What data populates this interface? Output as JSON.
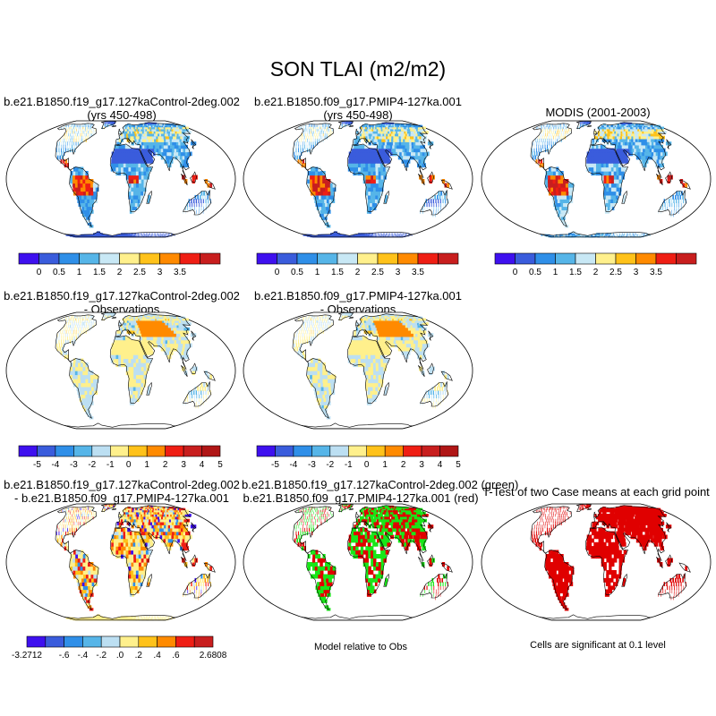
{
  "title": "SON TLAI (m2/m2)",
  "colors": {
    "abs_scale": [
      "#3e10ef",
      "#3a5cdc",
      "#2f8fe8",
      "#56b5e8",
      "#c8e8f5",
      "#fff08c",
      "#ffc21a",
      "#ff8a00",
      "#ef1e14",
      "#c81e1e"
    ],
    "diff_scale": [
      "#3e10ef",
      "#3a5cdc",
      "#2f8fe8",
      "#56b5e8",
      "#bcdff2",
      "#fff08c",
      "#ffc21a",
      "#ff8a00",
      "#ef1e14",
      "#c81e1e"
    ],
    "green": "#19e619",
    "red": "#e00000"
  },
  "panels": [
    {
      "title_line1": "b.e21.B1850.f19_g17.127kaControl-2deg.002",
      "title_line2": "(yrs 450-498)"
    },
    {
      "title_line1": "b.e21.B1850.f09_g17.PMIP4-127ka.001",
      "title_line2": "(yrs 450-498)"
    },
    {
      "title_line1": "MODIS (2001-2003)",
      "title_line2": ""
    },
    {
      "title_line1": "b.e21.B1850.f19_g17.127kaControl-2deg.002",
      "title_line2": "- Observations"
    },
    {
      "title_line1": "b.e21.B1850.f09_g17.PMIP4-127ka.001",
      "title_line2": "- Observations"
    },
    {
      "title_line1": "b.e21.B1850.f19_g17.127kaControl-2deg.002",
      "title_line2": "- b.e21.B1850.f09_g17.PMIP4-127ka.001"
    },
    {
      "title_line1": "b.e21.B1850.f19_g17.127kaControl-2deg.002 (green)",
      "title_line2": "b.e21.B1850.f09_g17.PMIP4-127ka.001 (red)"
    },
    {
      "title_line1": "T-Test of two Case means at each grid point",
      "title_line2": ""
    }
  ],
  "notes": {
    "model_relative": "Model relative to Obs",
    "significance": "Cells are significant at 0.1 level"
  },
  "chart_data": [
    {
      "type": "heatmap",
      "title": "b.e21.B1850.f19_g17.127kaControl-2deg.002 (yrs 450-498)",
      "colorbar_labels": [
        "0",
        "0.5",
        "1",
        "1.5",
        "2",
        "2.5",
        "3",
        "3.5"
      ]
    },
    {
      "type": "heatmap",
      "title": "b.e21.B1850.f09_g17.PMIP4-127ka.001 (yrs 450-498)",
      "colorbar_labels": [
        "0",
        "0.5",
        "1",
        "1.5",
        "2",
        "2.5",
        "3",
        "3.5"
      ]
    },
    {
      "type": "heatmap",
      "title": "MODIS (2001-2003)",
      "colorbar_labels": [
        "0",
        "0.5",
        "1",
        "1.5",
        "2",
        "2.5",
        "3",
        "3.5"
      ]
    },
    {
      "type": "heatmap",
      "title": "b.e21.B1850.f19_g17.127kaControl-2deg.002 - Observations",
      "colorbar_labels": [
        "-5",
        "-4",
        "-3",
        "-2",
        "-1",
        "0",
        "1",
        "2",
        "3",
        "4",
        "5"
      ]
    },
    {
      "type": "heatmap",
      "title": "b.e21.B1850.f09_g17.PMIP4-127ka.001 - Observations",
      "colorbar_labels": [
        "-5",
        "-4",
        "-3",
        "-2",
        "-1",
        "0",
        "1",
        "2",
        "3",
        "4",
        "5"
      ]
    },
    {
      "type": "heatmap",
      "title": "b.e21.B1850.f19_g17.127kaControl-2deg.002 - b.e21.B1850.f09_g17.PMIP4-127ka.001",
      "colorbar_labels": [
        "-3.2712",
        "-.6",
        "-.4",
        "-.2",
        ".0",
        ".2",
        ".4",
        ".6",
        "2.6808"
      ]
    },
    {
      "type": "heatmap",
      "title": "b.e21.B1850.f19_g17.127kaControl-2deg.002 (green) b.e21.B1850.f09_g17.PMIP4-127ka.001 (red)",
      "note": "Model relative to Obs"
    },
    {
      "type": "heatmap",
      "title": "T-Test of two Case means at each grid point",
      "note": "Cells are significant at 0.1 level"
    }
  ]
}
